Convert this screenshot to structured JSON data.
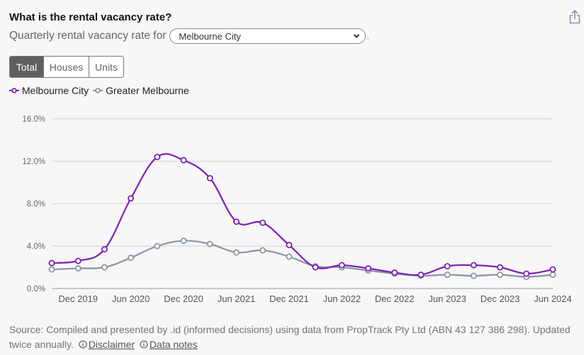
{
  "header": {
    "title": "What is the rental vacancy rate?",
    "subtitle_prefix": "Quarterly rental vacancy rate for",
    "area_select_value": "Melbourne City",
    "subtitle_suffix": "."
  },
  "icons": {
    "share": "share-icon",
    "select_chevron": "chevron-down-icon",
    "info": "info-icon"
  },
  "toggle": {
    "options": [
      "Total",
      "Houses",
      "Units"
    ],
    "active": "Total"
  },
  "legend": [
    {
      "label": "Melbourne City",
      "color": "#7a1fb8"
    },
    {
      "label": "Greater Melbourne",
      "color": "#8b94a3"
    }
  ],
  "chart_data": {
    "type": "line",
    "title": "Quarterly rental vacancy rate",
    "xlabel": "",
    "ylabel": "",
    "x": [
      "Sep 2019",
      "Dec 2019",
      "Mar 2020",
      "Jun 2020",
      "Sep 2020",
      "Dec 2020",
      "Mar 2021",
      "Jun 2021",
      "Sep 2021",
      "Dec 2021",
      "Mar 2022",
      "Jun 2022",
      "Sep 2022",
      "Dec 2022",
      "Mar 2023",
      "Jun 2023",
      "Sep 2023",
      "Dec 2023",
      "Mar 2024",
      "Jun 2024"
    ],
    "x_tick_labels": [
      "Dec 2019",
      "Jun 2020",
      "Dec 2020",
      "Jun 2021",
      "Dec 2021",
      "Jun 2022",
      "Dec 2022",
      "Jun 2023",
      "Dec 2023",
      "Jun 2024"
    ],
    "y_tick_labels": [
      "0.0%",
      "4.0%",
      "8.0%",
      "12.0%",
      "16.0%"
    ],
    "y_ticks": [
      0,
      4,
      8,
      12,
      16
    ],
    "ylim": [
      0,
      16
    ],
    "grid": true,
    "legend_position": "top-left",
    "series": [
      {
        "name": "Melbourne City",
        "color": "#7a1fb8",
        "values": [
          2.4,
          2.6,
          3.7,
          8.5,
          12.4,
          12.1,
          10.4,
          6.3,
          6.2,
          4.1,
          2.0,
          2.2,
          1.9,
          1.5,
          1.3,
          2.1,
          2.2,
          2.0,
          1.4,
          1.8
        ]
      },
      {
        "name": "Greater Melbourne",
        "color": "#8b94a3",
        "values": [
          1.8,
          1.9,
          2.0,
          2.9,
          4.0,
          4.5,
          4.2,
          3.4,
          3.6,
          3.0,
          2.1,
          2.0,
          1.7,
          1.4,
          1.2,
          1.3,
          1.2,
          1.3,
          1.1,
          1.3
        ]
      }
    ]
  },
  "footer": {
    "source_text": "Source: Compiled and presented by .id (informed decisions) using data from PropTrack Pty Ltd (ABN 43 127 386 298). Updated twice annually.",
    "disclaimer_label": "Disclaimer",
    "data_notes_label": "Data notes"
  }
}
